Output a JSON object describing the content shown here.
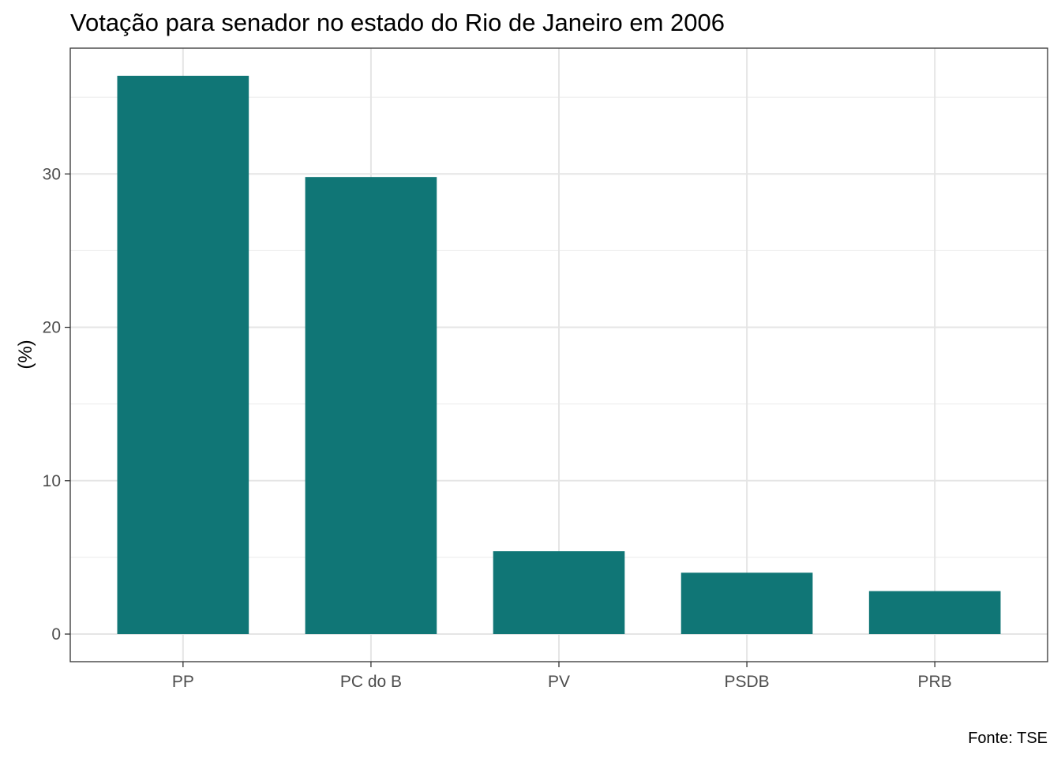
{
  "chart_data": {
    "type": "bar",
    "title": "Votação para senador no estado do Rio de Janeiro em 2006",
    "xlabel": "",
    "ylabel": "(%)",
    "categories": [
      "PP",
      "PC do B",
      "PV",
      "PSDB",
      "PRB"
    ],
    "values": [
      36.4,
      29.8,
      5.4,
      4.0,
      2.8
    ],
    "ylim": [
      -1.8,
      38.2
    ],
    "yticks": [
      0,
      10,
      20,
      30
    ],
    "ytick_labels": [
      "0",
      "10",
      "20",
      "30"
    ],
    "caption": "Fonte: TSE",
    "bar_color": "#107676",
    "grid": true,
    "legend": "none"
  }
}
